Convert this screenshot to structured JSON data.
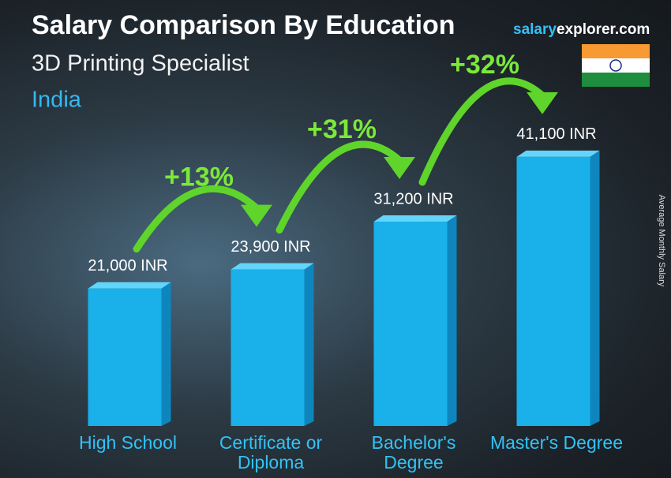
{
  "chart_data": {
    "type": "bar3d",
    "title": "Salary Comparison By Education",
    "subtitle": "3D Printing Specialist",
    "country": "India",
    "site": [
      "salary",
      "explorer.com"
    ],
    "axis_label": "Average Monthly Salary",
    "categories": [
      "High School",
      "Certificate or Diploma",
      "Bachelor's Degree",
      "Master's Degree"
    ],
    "values": [
      21000,
      23900,
      31200,
      41100
    ],
    "value_labels": [
      "21,000 INR",
      "23,900 INR",
      "31,200 INR",
      "41,100 INR"
    ],
    "increments": [
      "+13%",
      "+31%",
      "+32%"
    ],
    "color": "#1ab0ea"
  }
}
